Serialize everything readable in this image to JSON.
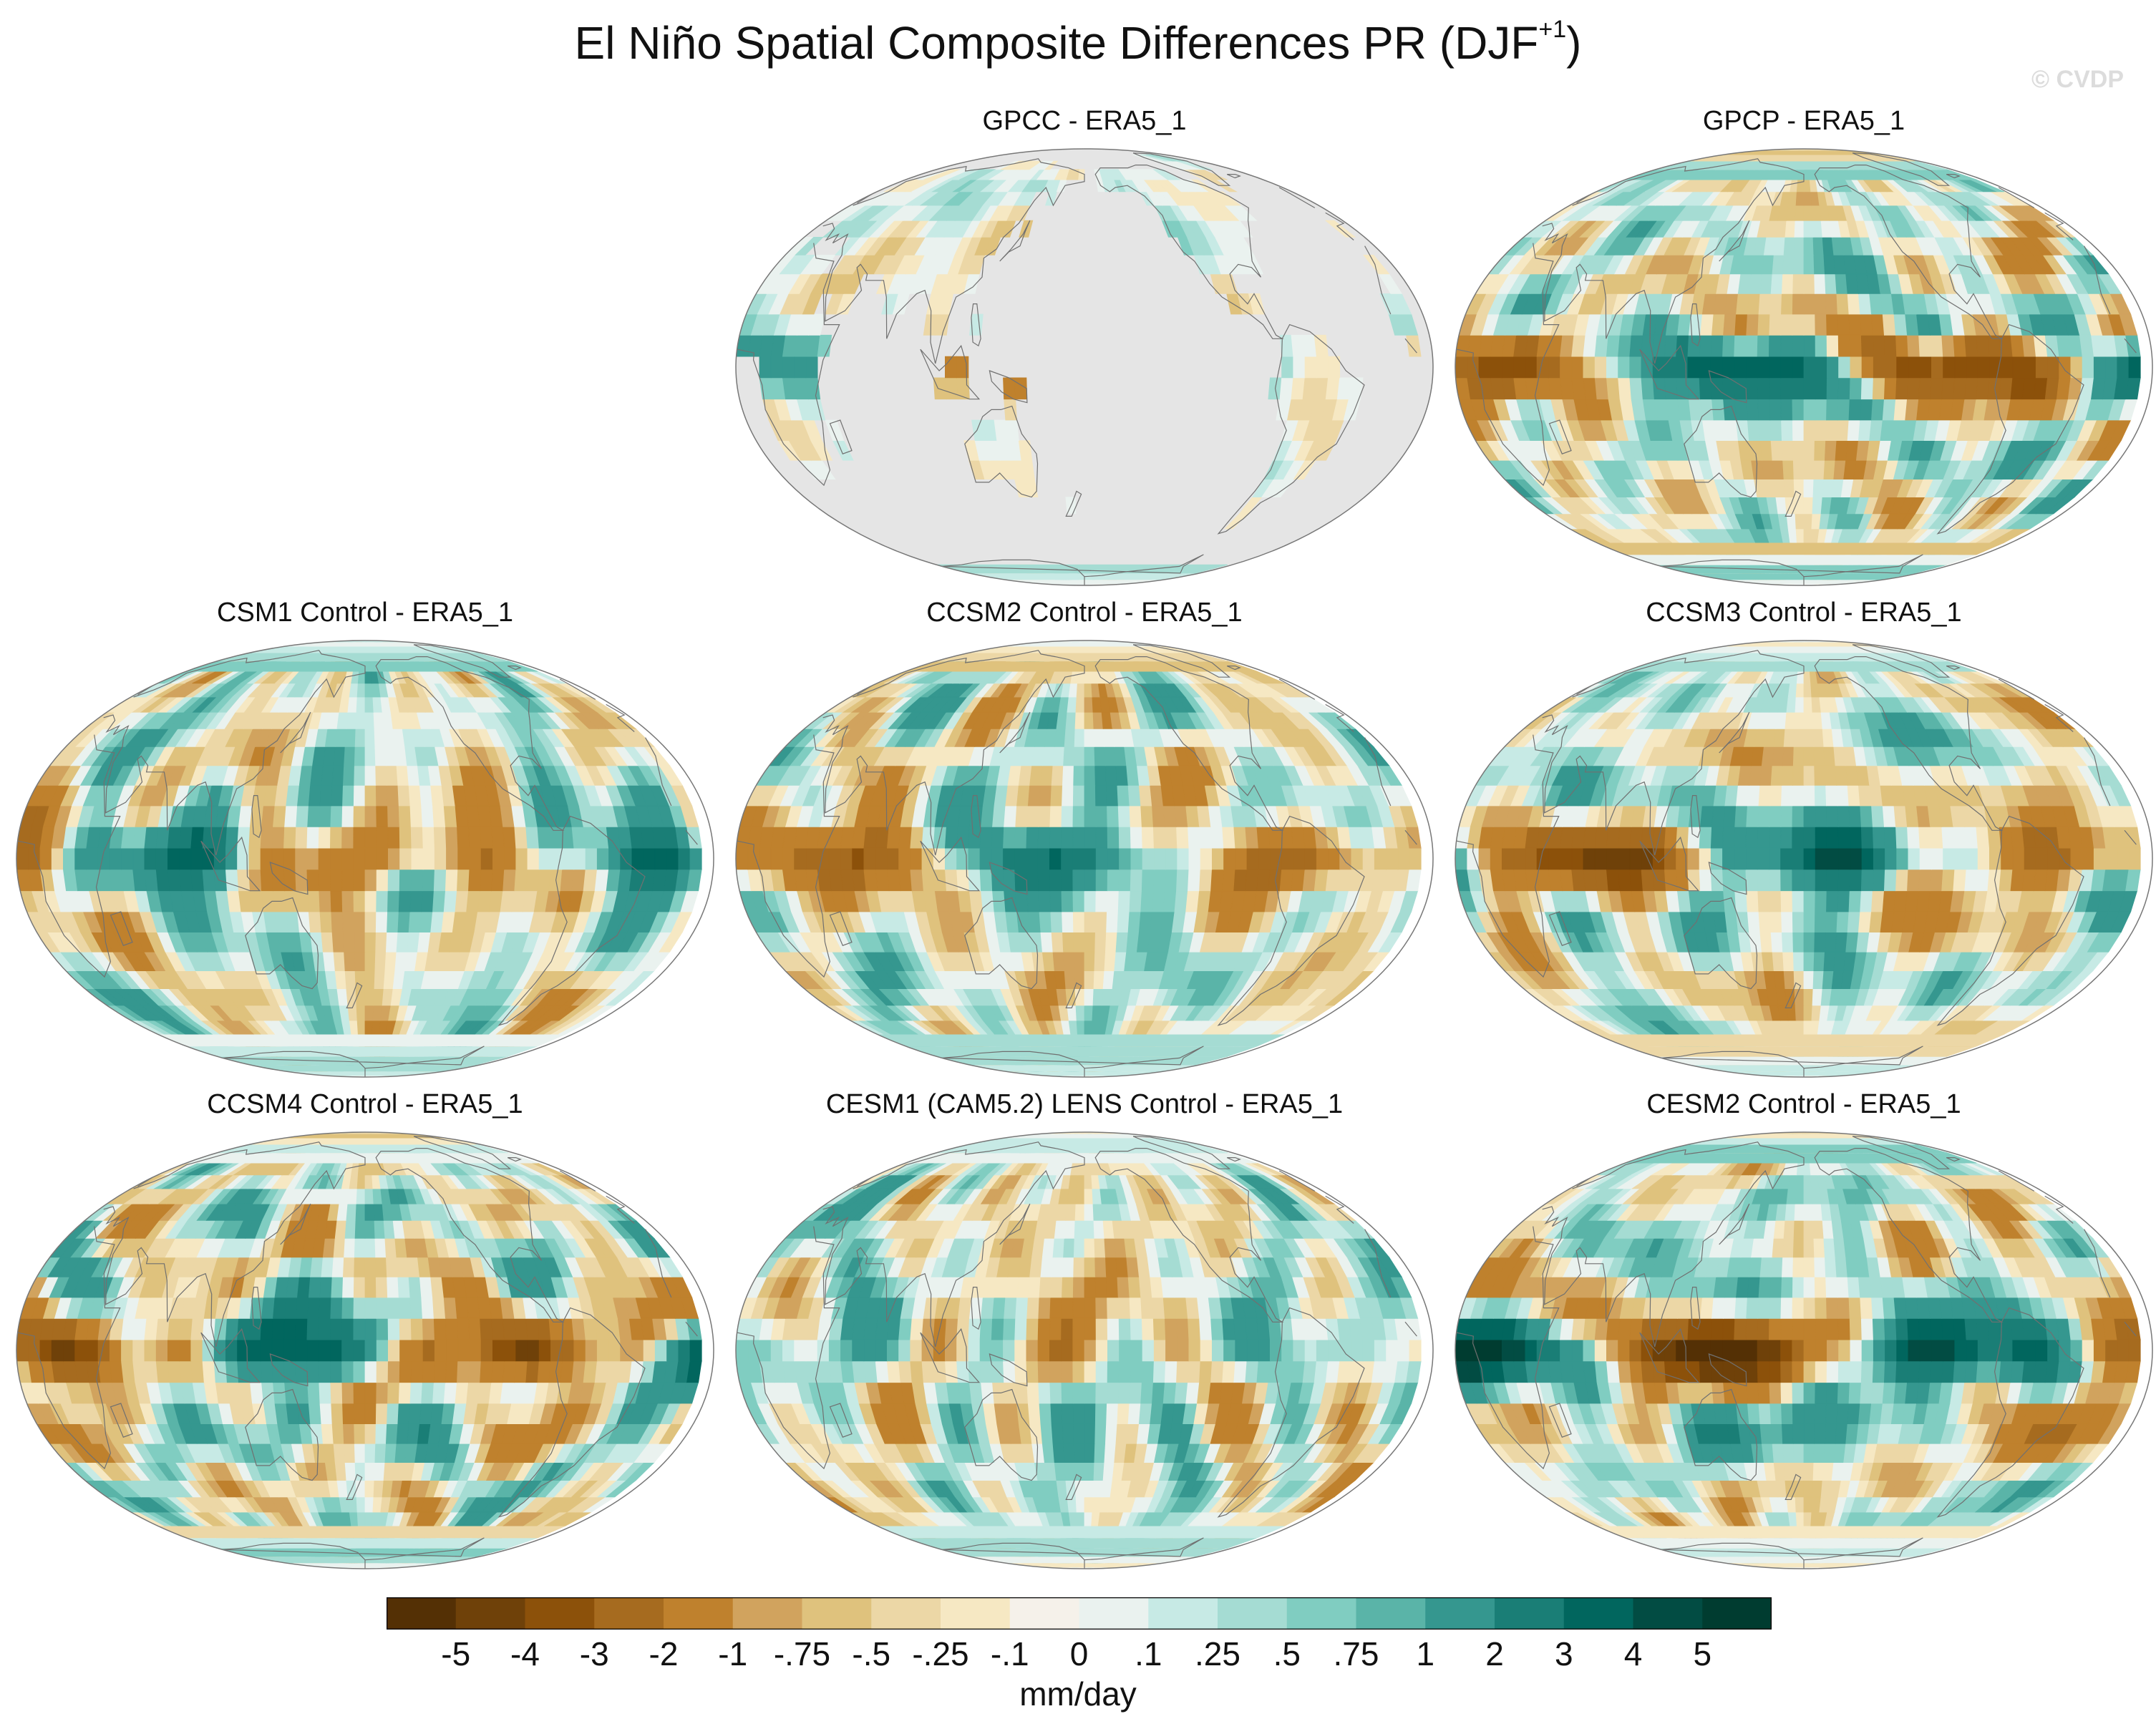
{
  "title": {
    "text": "El Niño Spatial Composite Differences PR (DJF",
    "superscript": "+1",
    "closing": ")"
  },
  "watermark": "© CVDP",
  "panels": [
    {
      "id": "gpcc",
      "title": "GPCC - ERA5_1",
      "land_only": true,
      "seed": 11,
      "amplitude": 0.55
    },
    {
      "id": "gpcp",
      "title": "GPCP - ERA5_1",
      "land_only": false,
      "seed": 23,
      "amplitude": 0.85
    },
    {
      "id": "csm1",
      "title": "CSM1 Control - ERA5_1",
      "land_only": false,
      "seed": 37,
      "amplitude": 1.1
    },
    {
      "id": "ccsm2",
      "title": "CCSM2 Control - ERA5_1",
      "land_only": false,
      "seed": 41,
      "amplitude": 1.1
    },
    {
      "id": "ccsm3",
      "title": "CCSM3 Control - ERA5_1",
      "land_only": false,
      "seed": 53,
      "amplitude": 1.1
    },
    {
      "id": "ccsm4",
      "title": "CCSM4 Control - ERA5_1",
      "land_only": false,
      "seed": 67,
      "amplitude": 1.15
    },
    {
      "id": "cesm1",
      "title": "CESM1 (CAM5.2) LENS Control - ERA5_1",
      "land_only": false,
      "seed": 79,
      "amplitude": 1.15
    },
    {
      "id": "cesm2",
      "title": "CESM2 Control - ERA5_1",
      "land_only": false,
      "seed": 83,
      "amplitude": 1.1
    }
  ],
  "colorbar": {
    "units": "mm/day",
    "labels": [
      "-5",
      "-4",
      "-3",
      "-2",
      "-1",
      "-.75",
      "-.5",
      "-.25",
      "-.1",
      "0",
      ".1",
      ".25",
      ".5",
      ".75",
      "1",
      "2",
      "3",
      "4",
      "5"
    ],
    "colors": [
      "#543005",
      "#6f4109",
      "#8c510a",
      "#a66b1f",
      "#bf812d",
      "#d1a35e",
      "#dfc27d",
      "#ecd7a6",
      "#f6e8c3",
      "#f5f1ea",
      "#eaf2ef",
      "#c7eae5",
      "#a5dcd3",
      "#80cdc1",
      "#5ab4a8",
      "#35978f",
      "#1a7e76",
      "#01665e",
      "#024c43",
      "#003c30"
    ]
  },
  "land_color": "#e5e5e5"
}
